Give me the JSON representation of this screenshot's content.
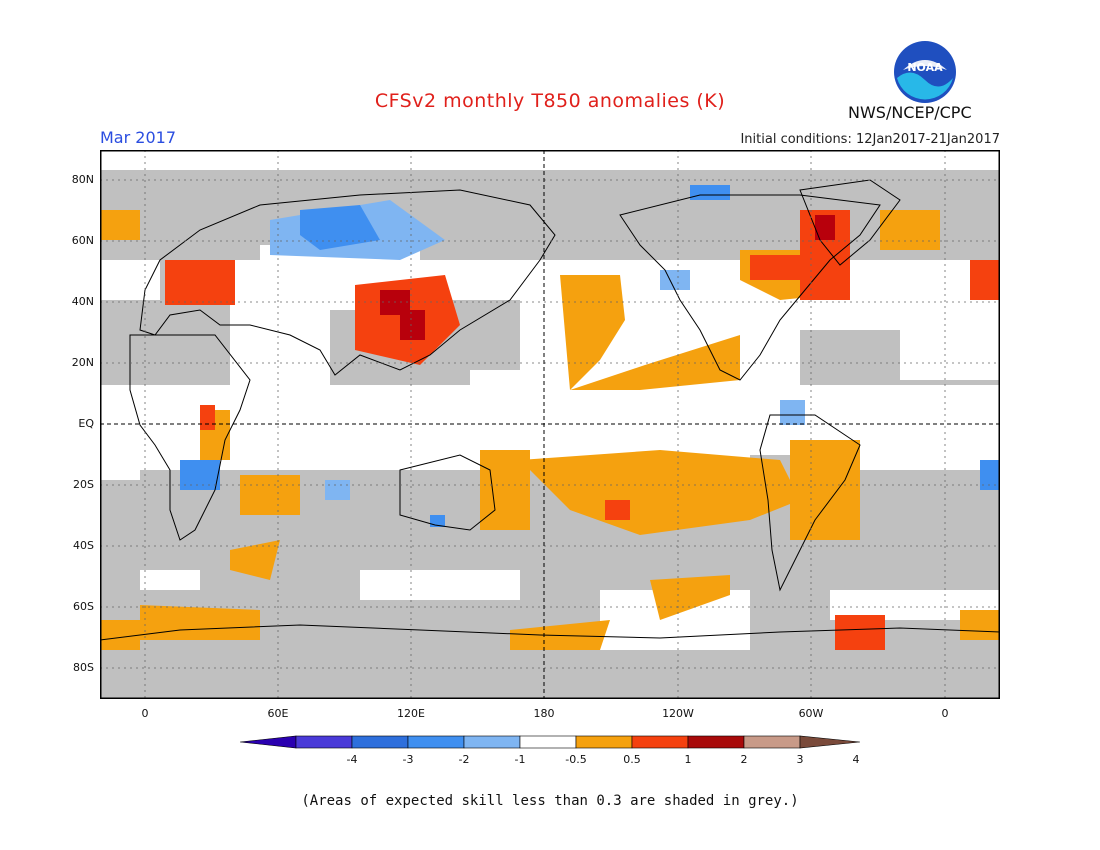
{
  "header": {
    "title": "CFSv2 monthly T850 anomalies (K)",
    "month": "Mar 2017",
    "initial_conditions": "Initial conditions: 12Jan2017-21Jan2017",
    "agency": "NWS/NCEP/CPC",
    "logo_text": "NOAA"
  },
  "map": {
    "lat_labels": [
      "80N",
      "60N",
      "40N",
      "20N",
      "EQ",
      "20S",
      "40S",
      "60S",
      "80S"
    ],
    "lon_labels": [
      "0",
      "60E",
      "120E",
      "180",
      "120W",
      "60W",
      "0"
    ],
    "colors": {
      "grey_low_skill": "#c0c0c0",
      "neutral": "#ffffff",
      "light_orange": "#f5a10f",
      "red_orange": "#f5410f",
      "dark_red": "#b8000c",
      "light_blue": "#7fb5f2",
      "mid_blue": "#3f8ff0",
      "ocean_frame": "#000000"
    }
  },
  "colorbar": {
    "tick_labels": [
      "-4",
      "-3",
      "-2",
      "-1",
      "-0.5",
      "0.5",
      "1",
      "2",
      "3",
      "4"
    ],
    "colors": [
      "#2a00b0",
      "#4a3ad8",
      "#2e6fdc",
      "#3f8ff0",
      "#7fb5f2",
      "#ffffff",
      "#f5a10f",
      "#f5410f",
      "#a80a0a",
      "#c89a88",
      "#7a4a3a"
    ]
  },
  "footer": {
    "note": "(Areas of expected skill less than 0.3 are shaded in grey.)"
  }
}
